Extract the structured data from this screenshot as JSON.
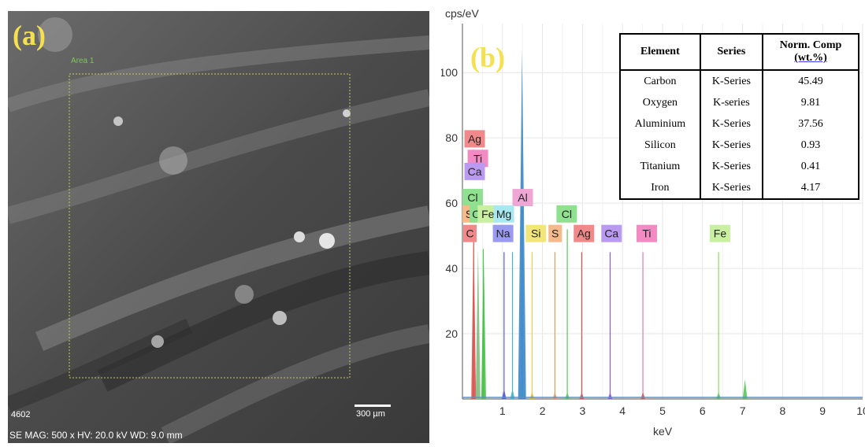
{
  "panel_a": {
    "letter": "(a)",
    "corner_label": "4602",
    "scale_label": "300 µm",
    "footer": "SE  MAG: 500 x  HV: 20.0 kV  WD: 9.0 mm",
    "box_label": "Area 1"
  },
  "panel_b": {
    "letter": "(b)"
  },
  "table": {
    "headers": [
      "Element",
      "Series",
      "Norm. Comp",
      "(wt.%)"
    ],
    "rows": [
      {
        "element": "Carbon",
        "series": "K-Series",
        "value": "45.49"
      },
      {
        "element": "Oxygen",
        "series": "K-series",
        "value": "9.81"
      },
      {
        "element": "Aluminium",
        "series": "K-Series",
        "value": "37.56"
      },
      {
        "element": "Silicon",
        "series": "K-Series",
        "value": "0.93"
      },
      {
        "element": "Titanium",
        "series": "K-Series",
        "value": "0.41"
      },
      {
        "element": "Iron",
        "series": "K-Series",
        "value": "4.17"
      }
    ]
  },
  "chart_data": {
    "type": "line",
    "title": "",
    "xlabel": "keV",
    "ylabel": "cps/eV",
    "xlim": [
      0,
      10
    ],
    "ylim": [
      0,
      115
    ],
    "x_ticks": [
      "1",
      "2",
      "3",
      "4",
      "5",
      "6",
      "7",
      "8",
      "9",
      "10"
    ],
    "y_ticks": [
      "20",
      "40",
      "60",
      "80",
      "100"
    ],
    "grid": true,
    "spectrum_peaks": [
      {
        "x": 0.28,
        "y": 52,
        "color": "#d9534f"
      },
      {
        "x": 0.39,
        "y": 46,
        "color": "#7fbf7f"
      },
      {
        "x": 0.53,
        "y": 46,
        "color": "#46c046"
      },
      {
        "x": 1.04,
        "y": 3,
        "color": "#5b5bd6"
      },
      {
        "x": 1.25,
        "y": 3,
        "color": "#3cb8c8"
      },
      {
        "x": 1.49,
        "y": 107,
        "color": "#3a86c8"
      },
      {
        "x": 1.74,
        "y": 2,
        "color": "#d4c030"
      },
      {
        "x": 2.31,
        "y": 2,
        "color": "#e69a5a"
      },
      {
        "x": 2.62,
        "y": 2,
        "color": "#5ac85a"
      },
      {
        "x": 2.98,
        "y": 2,
        "color": "#d9534f"
      },
      {
        "x": 3.69,
        "y": 2,
        "color": "#8b5bd6"
      },
      {
        "x": 4.51,
        "y": 2,
        "color": "#d9534f"
      },
      {
        "x": 6.4,
        "y": 2,
        "color": "#5ac85a"
      },
      {
        "x": 7.06,
        "y": 6,
        "color": "#5ac85a"
      }
    ],
    "marker_lines": [
      {
        "x": 0.28,
        "top": 50,
        "color": "#d9534f"
      },
      {
        "x": 0.52,
        "top": 46,
        "color": "#5ac85a"
      },
      {
        "x": 1.04,
        "top": 45,
        "color": "#5b5bd6"
      },
      {
        "x": 1.25,
        "top": 45,
        "color": "#3cb8c8"
      },
      {
        "x": 1.49,
        "top": 58,
        "color": "#3cb8c8"
      },
      {
        "x": 1.74,
        "top": 45,
        "color": "#e6d24a"
      },
      {
        "x": 2.31,
        "top": 45,
        "color": "#e69a5a"
      },
      {
        "x": 2.62,
        "top": 52,
        "color": "#5ac85a"
      },
      {
        "x": 2.98,
        "top": 45,
        "color": "#d9534f"
      },
      {
        "x": 3.69,
        "top": 45,
        "color": "#8b5bd6"
      },
      {
        "x": 4.51,
        "top": 45,
        "color": "#e67fb0"
      },
      {
        "x": 6.4,
        "top": 45,
        "color": "#8fd86a"
      }
    ],
    "element_labels": [
      {
        "text": "Ag",
        "x": 0.05,
        "y": 78.5,
        "color": "#f08a8a"
      },
      {
        "text": "Ti",
        "x": 0.13,
        "y": 72.5,
        "color": "#f28ac4"
      },
      {
        "text": "Ca",
        "x": 0.05,
        "y": 68.5,
        "color": "#b99af0"
      },
      {
        "text": "Cl",
        "x": 0.0,
        "y": 60.5,
        "color": "#8fe08f"
      },
      {
        "text": "Al",
        "x": 1.25,
        "y": 60.5,
        "color": "#f0a6d4"
      },
      {
        "text": "S",
        "x": 0.0,
        "y": 55.5,
        "color": "#f5b98a"
      },
      {
        "text": "O",
        "x": 0.18,
        "y": 55.5,
        "color": "#8fe08f"
      },
      {
        "text": "Fe",
        "x": 0.38,
        "y": 55.5,
        "color": "#c8f0a0"
      },
      {
        "text": "Mg",
        "x": 0.78,
        "y": 55.5,
        "color": "#a8e8f0"
      },
      {
        "text": "Cl",
        "x": 2.35,
        "y": 55.5,
        "color": "#8fe08f"
      },
      {
        "text": "C",
        "x": 0.02,
        "y": 49.5,
        "color": "#f08a8a"
      },
      {
        "text": "Na",
        "x": 0.76,
        "y": 49.5,
        "color": "#9a9af0"
      },
      {
        "text": "Si",
        "x": 1.58,
        "y": 49.5,
        "color": "#f2e67a"
      },
      {
        "text": "S",
        "x": 2.15,
        "y": 49.5,
        "color": "#f5b98a"
      },
      {
        "text": "Ag",
        "x": 2.78,
        "y": 49.5,
        "color": "#f08a8a"
      },
      {
        "text": "Ca",
        "x": 3.47,
        "y": 49.5,
        "color": "#b99af0"
      },
      {
        "text": "Ti",
        "x": 4.35,
        "y": 49.5,
        "color": "#f28ac4"
      },
      {
        "text": "Fe",
        "x": 6.18,
        "y": 49.5,
        "color": "#c8f0a0"
      }
    ]
  }
}
